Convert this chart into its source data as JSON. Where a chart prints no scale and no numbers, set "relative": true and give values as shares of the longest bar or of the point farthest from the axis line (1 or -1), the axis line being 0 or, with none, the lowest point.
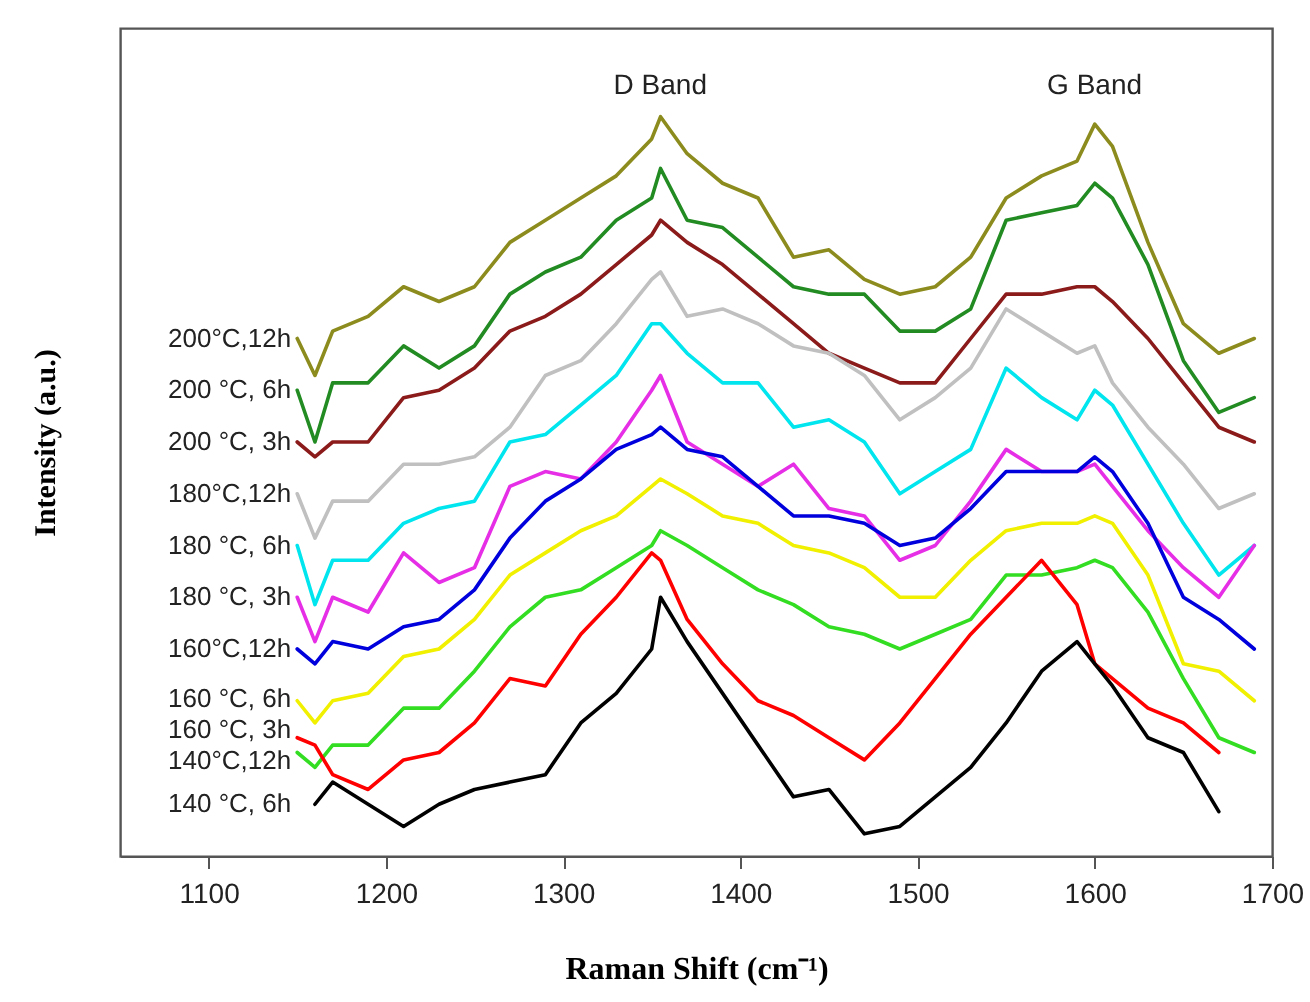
{
  "chart_data": {
    "type": "line",
    "relative": true,
    "xlabel": "Raman Shift (cm⁻¹)",
    "ylabel": "Intensity (a.u.)",
    "xlim": [
      1050,
      1700
    ],
    "xticks": [
      1100,
      1200,
      1300,
      1400,
      1500,
      1600,
      1700
    ],
    "legend": false,
    "line_style": "solid",
    "x": [
      1150,
      1160,
      1170,
      1190,
      1210,
      1230,
      1250,
      1270,
      1290,
      1310,
      1330,
      1350,
      1355,
      1370,
      1390,
      1410,
      1430,
      1450,
      1470,
      1490,
      1510,
      1530,
      1550,
      1570,
      1590,
      1600,
      1610,
      1630,
      1650,
      1670,
      1690
    ],
    "annotations": [
      "D Band",
      "G Band"
    ],
    "series": [
      {
        "name": "200°C,12h",
        "color": "#8c8c1e",
        "values": [
          0.7,
          0.65,
          0.71,
          0.73,
          0.77,
          0.75,
          0.77,
          0.83,
          0.86,
          0.89,
          0.92,
          0.97,
          1.0,
          0.95,
          0.91,
          0.89,
          0.81,
          0.82,
          0.78,
          0.76,
          0.77,
          0.81,
          0.89,
          0.92,
          0.94,
          0.99,
          0.96,
          0.83,
          0.72,
          0.68,
          0.7
        ]
      },
      {
        "name": "200 °C, 6h",
        "color": "#228b22",
        "values": [
          0.63,
          0.56,
          0.64,
          0.64,
          0.69,
          0.66,
          0.69,
          0.76,
          0.79,
          0.81,
          0.86,
          0.89,
          0.93,
          0.86,
          0.85,
          0.81,
          0.77,
          0.76,
          0.76,
          0.71,
          0.71,
          0.74,
          0.86,
          0.87,
          0.88,
          0.91,
          0.89,
          0.8,
          0.67,
          0.6,
          0.62
        ]
      },
      {
        "name": "200 °C, 3h",
        "color": "#8b1a1a",
        "values": [
          0.56,
          0.54,
          0.56,
          0.56,
          0.62,
          0.63,
          0.66,
          0.71,
          0.73,
          0.76,
          0.8,
          0.84,
          0.86,
          0.83,
          0.8,
          0.76,
          0.72,
          0.68,
          0.66,
          0.64,
          0.64,
          0.7,
          0.76,
          0.76,
          0.77,
          0.77,
          0.75,
          0.7,
          0.64,
          0.58,
          0.56
        ]
      },
      {
        "name": "180°C,12h",
        "color": "#c0c0c0",
        "values": [
          0.49,
          0.43,
          0.48,
          0.48,
          0.53,
          0.53,
          0.54,
          0.58,
          0.65,
          0.67,
          0.72,
          0.78,
          0.79,
          0.73,
          0.74,
          0.72,
          0.69,
          0.68,
          0.65,
          0.59,
          0.62,
          0.66,
          0.74,
          0.71,
          0.68,
          0.69,
          0.64,
          0.58,
          0.53,
          0.47,
          0.49
        ]
      },
      {
        "name": "180 °C, 6h",
        "color": "#00e5ee",
        "values": [
          0.42,
          0.34,
          0.4,
          0.4,
          0.45,
          0.47,
          0.48,
          0.56,
          0.57,
          0.61,
          0.65,
          0.72,
          0.72,
          0.68,
          0.64,
          0.64,
          0.58,
          0.59,
          0.56,
          0.49,
          0.52,
          0.55,
          0.66,
          0.62,
          0.59,
          0.63,
          0.61,
          0.53,
          0.45,
          0.38,
          0.42
        ]
      },
      {
        "name": "180 °C, 3h",
        "color": "#e62ee6",
        "values": [
          0.35,
          0.29,
          0.35,
          0.33,
          0.41,
          0.37,
          0.39,
          0.5,
          0.52,
          0.51,
          0.56,
          0.63,
          0.65,
          0.56,
          0.53,
          0.5,
          0.53,
          0.47,
          0.46,
          0.4,
          0.42,
          0.48,
          0.55,
          0.52,
          0.52,
          0.53,
          0.5,
          0.44,
          0.39,
          0.35,
          0.42
        ]
      },
      {
        "name": "160°C,12h",
        "color": "#0000dd",
        "values": [
          0.28,
          0.26,
          0.29,
          0.28,
          0.31,
          0.32,
          0.36,
          0.43,
          0.48,
          0.51,
          0.55,
          0.57,
          0.58,
          0.55,
          0.54,
          0.5,
          0.46,
          0.46,
          0.45,
          0.42,
          0.43,
          0.47,
          0.52,
          0.52,
          0.52,
          0.54,
          0.52,
          0.45,
          0.35,
          0.32,
          0.28
        ]
      },
      {
        "name": "160 °C, 6h",
        "color": "#f0f000",
        "values": [
          0.21,
          0.18,
          0.21,
          0.22,
          0.27,
          0.28,
          0.32,
          0.38,
          0.41,
          0.44,
          0.46,
          0.5,
          0.51,
          0.49,
          0.46,
          0.45,
          0.42,
          0.41,
          0.39,
          0.35,
          0.35,
          0.4,
          0.44,
          0.45,
          0.45,
          0.46,
          0.45,
          0.38,
          0.26,
          0.25,
          0.21
        ]
      },
      {
        "name": "160 °C, 3h",
        "color": "#33dd22",
        "values": [
          0.14,
          0.12,
          0.15,
          0.15,
          0.2,
          0.2,
          0.25,
          0.31,
          0.35,
          0.36,
          0.39,
          0.42,
          0.44,
          0.42,
          0.39,
          0.36,
          0.34,
          0.31,
          0.3,
          0.28,
          0.3,
          0.32,
          0.38,
          0.38,
          0.39,
          0.4,
          0.39,
          0.33,
          0.24,
          0.16,
          0.14
        ]
      },
      {
        "name": "140°C,12h",
        "color": "#ff0000",
        "x": [
          1150,
          1160,
          1170,
          1190,
          1210,
          1230,
          1250,
          1270,
          1290,
          1310,
          1330,
          1350,
          1355,
          1370,
          1390,
          1410,
          1430,
          1450,
          1470,
          1490,
          1510,
          1530,
          1550,
          1570,
          1590,
          1600,
          1610,
          1630,
          1650,
          1670
        ],
        "values": [
          0.16,
          0.15,
          0.11,
          0.09,
          0.13,
          0.14,
          0.18,
          0.24,
          0.23,
          0.3,
          0.35,
          0.41,
          0.4,
          0.32,
          0.26,
          0.21,
          0.19,
          0.16,
          0.13,
          0.18,
          0.24,
          0.3,
          0.35,
          0.4,
          0.34,
          0.26,
          0.24,
          0.2,
          0.18,
          0.14
        ]
      },
      {
        "name": "140 °C, 6h",
        "color": "#000000",
        "x": [
          1160,
          1170,
          1190,
          1210,
          1230,
          1250,
          1270,
          1290,
          1310,
          1330,
          1350,
          1355,
          1370,
          1390,
          1410,
          1430,
          1450,
          1470,
          1490,
          1510,
          1530,
          1550,
          1570,
          1590,
          1600,
          1610,
          1630,
          1650,
          1670
        ],
        "values": [
          0.07,
          0.1,
          0.07,
          0.04,
          0.07,
          0.09,
          0.1,
          0.11,
          0.18,
          0.22,
          0.28,
          0.35,
          0.29,
          0.22,
          0.15,
          0.08,
          0.09,
          0.03,
          0.04,
          0.08,
          0.12,
          0.18,
          0.25,
          0.29,
          0.26,
          0.23,
          0.16,
          0.14,
          0.06
        ]
      }
    ]
  }
}
